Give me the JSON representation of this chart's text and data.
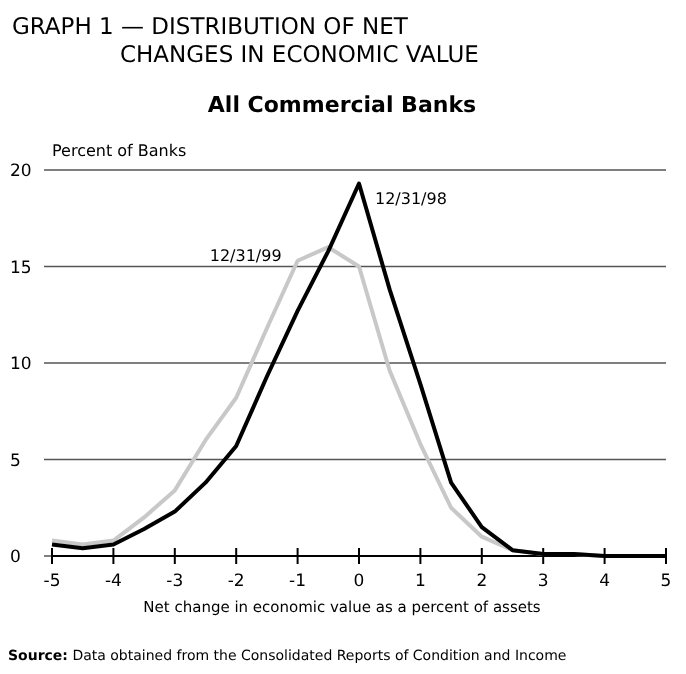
{
  "chart_data": {
    "type": "line",
    "title": "GRAPH 1 — DISTRIBUTION OF NET CHANGES IN ECONOMIC VALUE",
    "subtitle": "All Commercial Banks",
    "ylabel": "Percent of Banks",
    "xlabel": "Net change in economic value as a percent of assets",
    "x": [
      -5,
      -4.5,
      -4,
      -3.5,
      -3,
      -2.5,
      -2,
      -1.5,
      -1,
      -0.5,
      0,
      0.5,
      1,
      1.5,
      2,
      2.5,
      3,
      3.5,
      4,
      4.5,
      5
    ],
    "series": [
      {
        "name": "12/31/99",
        "color": "#c8c8c8",
        "values": [
          0.8,
          0.6,
          0.8,
          2,
          3.4,
          6,
          8.2,
          11.8,
          15.3,
          16,
          15,
          9.6,
          5.8,
          2.5,
          1,
          0.3,
          0.1,
          0.1,
          0,
          0,
          0
        ]
      },
      {
        "name": "12/31/98",
        "color": "#000000",
        "values": [
          0.6,
          0.4,
          0.6,
          1.4,
          2.3,
          3.8,
          5.7,
          9.3,
          12.7,
          15.8,
          19.3,
          13.8,
          8.9,
          3.8,
          1.5,
          0.3,
          0.1,
          0.1,
          0,
          0,
          0
        ]
      }
    ],
    "xlim": [
      -5,
      5
    ],
    "xticks": [
      -5,
      -4,
      -3,
      -2,
      -1,
      0,
      1,
      2,
      3,
      4,
      5
    ],
    "ylim": [
      0,
      20
    ],
    "yticks": [
      0,
      5,
      10,
      15,
      20
    ],
    "grid": "y",
    "marker": "none",
    "line_style": "solid",
    "annotations": [
      "Source: Data obtained from the Consolidated Reports of Condition and Income"
    ]
  }
}
